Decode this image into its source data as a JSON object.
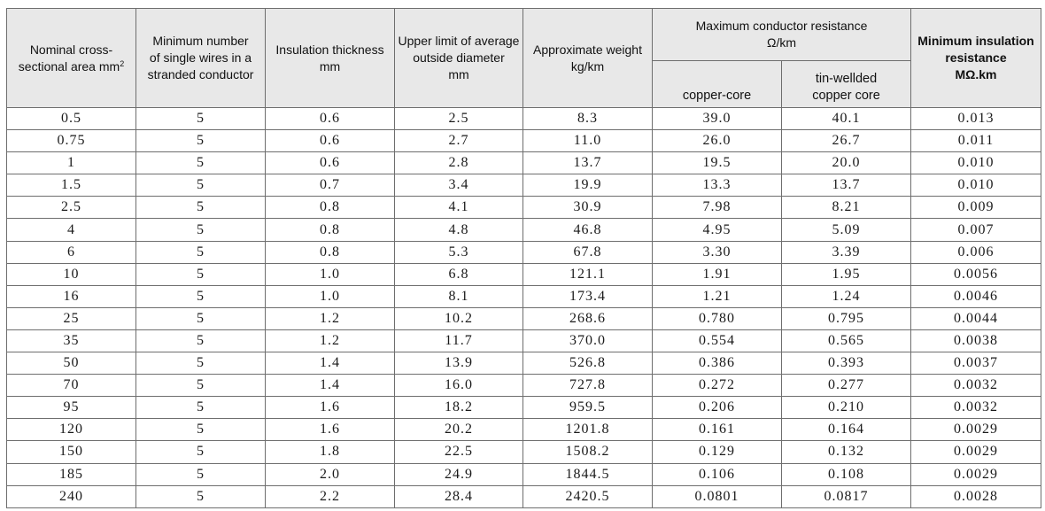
{
  "table": {
    "headers": {
      "nominal_area": [
        "Nominal cross-",
        "sectional area mm"
      ],
      "nominal_area_sup": "2",
      "min_wires": [
        "Minimum number",
        "of single wires in a",
        "stranded conductor"
      ],
      "insulation": [
        "Insulation thickness",
        "mm"
      ],
      "upper_limit": [
        "Upper limit of average",
        "outside diameter",
        "mm"
      ],
      "weight": [
        "Approximate weight",
        "kg/km"
      ],
      "max_resistance": [
        "Maximum conductor resistance",
        "Ω/km"
      ],
      "copper_core": "copper-core",
      "tin_core": [
        "tin-wellded",
        "copper core"
      ],
      "min_insulation": [
        "Minimum insulation",
        "resistance",
        "MΩ.km"
      ]
    },
    "rows": [
      [
        "0.5",
        "5",
        "0.6",
        "2.5",
        "8.3",
        "39.0",
        "40.1",
        "0.013"
      ],
      [
        "0.75",
        "5",
        "0.6",
        "2.7",
        "11.0",
        "26.0",
        "26.7",
        "0.011"
      ],
      [
        "1",
        "5",
        "0.6",
        "2.8",
        "13.7",
        "19.5",
        "20.0",
        "0.010"
      ],
      [
        "1.5",
        "5",
        "0.7",
        "3.4",
        "19.9",
        "13.3",
        "13.7",
        "0.010"
      ],
      [
        "2.5",
        "5",
        "0.8",
        "4.1",
        "30.9",
        "7.98",
        "8.21",
        "0.009"
      ],
      [
        "4",
        "5",
        "0.8",
        "4.8",
        "46.8",
        "4.95",
        "5.09",
        "0.007"
      ],
      [
        "6",
        "5",
        "0.8",
        "5.3",
        "67.8",
        "3.30",
        "3.39",
        "0.006"
      ],
      [
        "10",
        "5",
        "1.0",
        "6.8",
        "121.1",
        "1.91",
        "1.95",
        "0.0056"
      ],
      [
        "16",
        "5",
        "1.0",
        "8.1",
        "173.4",
        "1.21",
        "1.24",
        "0.0046"
      ],
      [
        "25",
        "5",
        "1.2",
        "10.2",
        "268.6",
        "0.780",
        "0.795",
        "0.0044"
      ],
      [
        "35",
        "5",
        "1.2",
        "11.7",
        "370.0",
        "0.554",
        "0.565",
        "0.0038"
      ],
      [
        "50",
        "5",
        "1.4",
        "13.9",
        "526.8",
        "0.386",
        "0.393",
        "0.0037"
      ],
      [
        "70",
        "5",
        "1.4",
        "16.0",
        "727.8",
        "0.272",
        "0.277",
        "0.0032"
      ],
      [
        "95",
        "5",
        "1.6",
        "18.2",
        "959.5",
        "0.206",
        "0.210",
        "0.0032"
      ],
      [
        "120",
        "5",
        "1.6",
        "20.2",
        "1201.8",
        "0.161",
        "0.164",
        "0.0029"
      ],
      [
        "150",
        "5",
        "1.8",
        "22.5",
        "1508.2",
        "0.129",
        "0.132",
        "0.0029"
      ],
      [
        "185",
        "5",
        "2.0",
        "24.9",
        "1844.5",
        "0.106",
        "0.108",
        "0.0029"
      ],
      [
        "240",
        "5",
        "2.2",
        "28.4",
        "2420.5",
        "0.0801",
        "0.0817",
        "0.0028"
      ]
    ]
  }
}
